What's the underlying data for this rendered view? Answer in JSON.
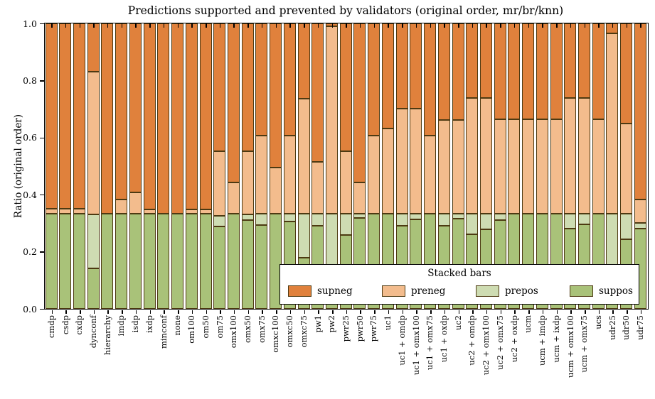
{
  "chart_data": {
    "type": "bar",
    "stacked": true,
    "title": "Predictions supported and prevented by validators (original order, mr/br/knn)",
    "xlabel": "",
    "ylabel": "Ratio (original order)",
    "ylim": [
      0.0,
      1.0
    ],
    "yticks": [
      "0.0",
      "0.2",
      "0.4",
      "0.6",
      "0.8",
      "1.0"
    ],
    "grid": false,
    "legend": {
      "title": "Stacked bars",
      "position": "lower right",
      "entries": [
        "supneg",
        "preneg",
        "prepos",
        "suppos"
      ]
    },
    "colors": {
      "supneg": "#e0813c",
      "preneg": "#f3bc8d",
      "prepos": "#cedcb2",
      "suppos": "#a9c279",
      "edge": "#4d3a12"
    },
    "categories": [
      "cmdp",
      "csdp",
      "cxdp",
      "dynconf",
      "hierarchy",
      "imdp",
      "isdp",
      "ixdp",
      "minconf",
      "none",
      "om100",
      "om50",
      "om75",
      "omx100",
      "omx50",
      "omx75",
      "omxc100",
      "omxc50",
      "omxc75",
      "pw1",
      "pw2",
      "pwr25",
      "pwr50",
      "pwr75",
      "uc1",
      "uc1 + omdp",
      "uc1 + omx100",
      "uc1 + omx75",
      "uc1 + oxdp",
      "uc2",
      "uc2 + omdp",
      "uc2 + omx100",
      "uc2 + omx75",
      "uc2 + oxdp",
      "ucm",
      "ucm + imdp",
      "ucm + ixdp",
      "ucm + omx100",
      "ucm + omx75",
      "ucs",
      "udr25",
      "udr50",
      "udr75"
    ],
    "series": [
      {
        "name": "suppos",
        "values": [
          0.333,
          0.333,
          0.333,
          0.142,
          0.333,
          0.333,
          0.333,
          0.333,
          0.333,
          0.333,
          0.333,
          0.333,
          0.289,
          0.333,
          0.31,
          0.293,
          0.333,
          0.306,
          0.179,
          0.29,
          0.1,
          0.258,
          0.318,
          0.333,
          0.333,
          0.29,
          0.314,
          0.333,
          0.29,
          0.316,
          0.261,
          0.278,
          0.31,
          0.333,
          0.333,
          0.333,
          0.333,
          0.28,
          0.295,
          0.333,
          0.1,
          0.245,
          0.28
        ]
      },
      {
        "name": "prepos",
        "values": [
          0.0,
          0.0,
          0.0,
          0.19,
          0.0,
          0.0,
          0.0,
          0.0,
          0.0,
          0.0,
          0.0,
          0.0,
          0.038,
          0.0,
          0.022,
          0.04,
          0.0,
          0.027,
          0.154,
          0.043,
          0.233,
          0.075,
          0.015,
          0.0,
          0.0,
          0.043,
          0.019,
          0.0,
          0.043,
          0.017,
          0.072,
          0.055,
          0.023,
          0.0,
          0.0,
          0.0,
          0.0,
          0.053,
          0.038,
          0.0,
          0.233,
          0.088,
          0.02
        ]
      },
      {
        "name": "preneg",
        "values": [
          0.017,
          0.017,
          0.017,
          0.498,
          0.0,
          0.05,
          0.075,
          0.015,
          0.0,
          0.0,
          0.015,
          0.015,
          0.226,
          0.109,
          0.22,
          0.274,
          0.161,
          0.274,
          0.403,
          0.182,
          0.657,
          0.22,
          0.109,
          0.275,
          0.299,
          0.369,
          0.369,
          0.273,
          0.329,
          0.329,
          0.405,
          0.405,
          0.331,
          0.331,
          0.331,
          0.331,
          0.332,
          0.407,
          0.407,
          0.332,
          0.632,
          0.317,
          0.083
        ]
      },
      {
        "name": "supneg",
        "values": [
          0.65,
          0.65,
          0.65,
          0.17,
          0.667,
          0.617,
          0.592,
          0.652,
          0.667,
          0.667,
          0.652,
          0.652,
          0.447,
          0.558,
          0.448,
          0.393,
          0.506,
          0.393,
          0.264,
          0.485,
          0.01,
          0.447,
          0.558,
          0.392,
          0.368,
          0.298,
          0.298,
          0.394,
          0.338,
          0.338,
          0.262,
          0.262,
          0.336,
          0.336,
          0.336,
          0.336,
          0.335,
          0.26,
          0.26,
          0.335,
          0.035,
          0.35,
          0.617
        ]
      }
    ]
  }
}
